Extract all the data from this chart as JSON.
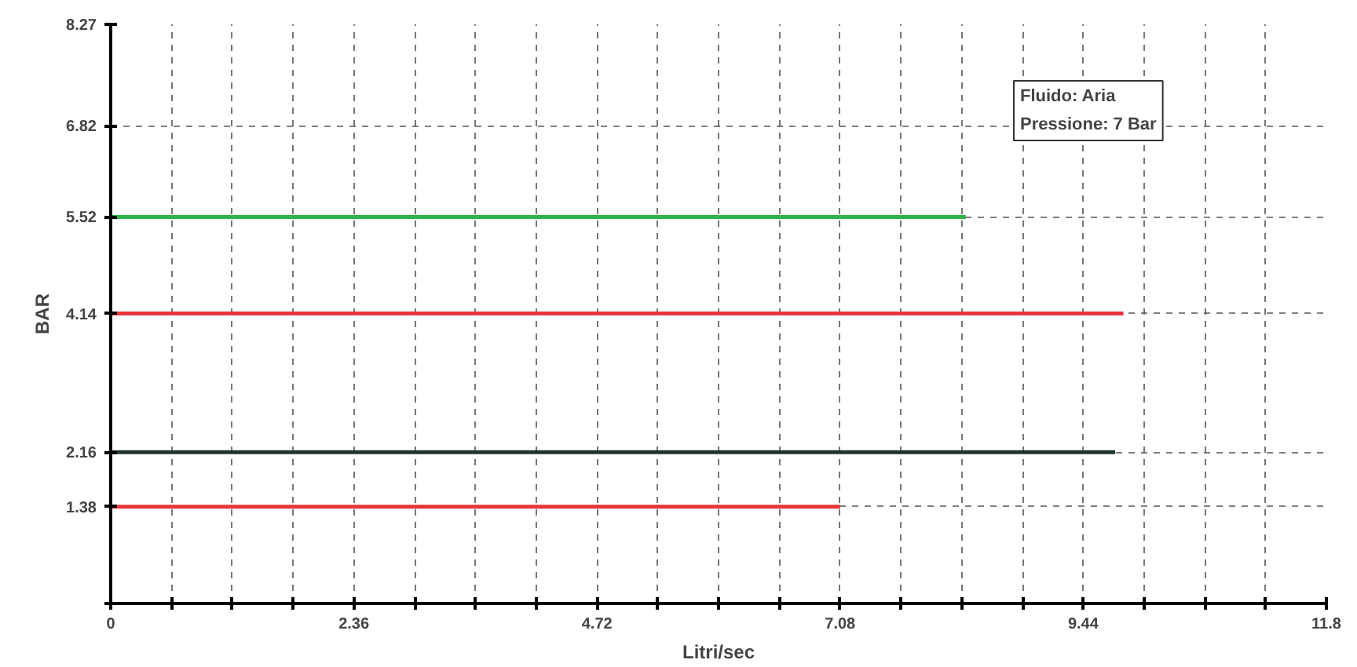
{
  "chart_data": {
    "type": "line",
    "xlabel": "Litri/sec",
    "ylabel": "BAR",
    "xlim": [
      0,
      11.8
    ],
    "ylim": [
      0,
      8.27
    ],
    "xticks": [
      0,
      {
        "value": 0.59,
        "label": null
      },
      {
        "value": 1.18,
        "label": null
      },
      {
        "value": 1.77,
        "label": null
      },
      2.36,
      {
        "value": 2.95,
        "label": null
      },
      {
        "value": 3.54,
        "label": null
      },
      {
        "value": 4.13,
        "label": null
      },
      4.72,
      {
        "value": 5.31,
        "label": null
      },
      {
        "value": 5.9,
        "label": null
      },
      {
        "value": 6.49,
        "label": null
      },
      7.08,
      {
        "value": 7.67,
        "label": null
      },
      {
        "value": 8.26,
        "label": null
      },
      {
        "value": 8.85,
        "label": null
      },
      9.44,
      {
        "value": 10.03,
        "label": null
      },
      {
        "value": 10.62,
        "label": null
      },
      {
        "value": 11.21,
        "label": null
      },
      11.8
    ],
    "yticks": [
      {
        "value": 0,
        "label": null
      },
      1.38,
      2.16,
      4.14,
      5.52,
      6.82,
      8.27
    ],
    "series": [
      {
        "color": "#2fb34a",
        "x": [
          0,
          8.3
        ],
        "values": [
          5.52,
          5.52
        ]
      },
      {
        "color": "#e8353a",
        "x": [
          0,
          9.83
        ],
        "values": [
          4.14,
          4.14
        ]
      },
      {
        "color": "#1e3330",
        "x": [
          0,
          9.75
        ],
        "values": [
          2.16,
          2.16
        ]
      },
      {
        "color": "#e8353a",
        "x": [
          0,
          7.08
        ],
        "values": [
          1.38,
          1.38
        ]
      }
    ],
    "annotations": [
      "Fluido:  Aria",
      "Pressione: 7 Bar"
    ],
    "grid": true,
    "marker": "none",
    "line_style": "solid"
  }
}
